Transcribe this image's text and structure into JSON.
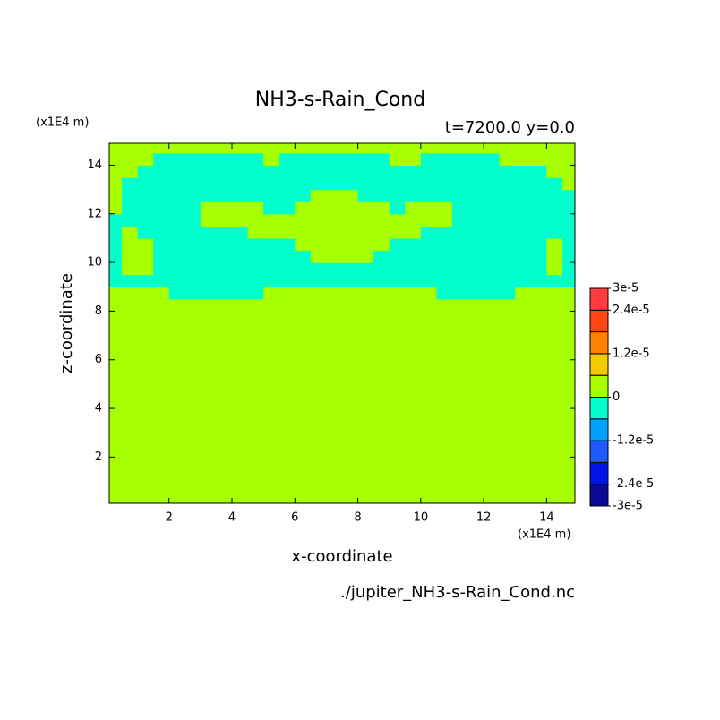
{
  "chart_data": {
    "type": "heatmap",
    "title": "NH3-s-Rain_Cond",
    "subtitle": "t=7200.0 y=0.0",
    "x_unit": "(x1E4 m)",
    "y_unit": "(x1E4 m)",
    "xlabel": "x-coordinate",
    "ylabel": "z-coordinate",
    "caption": "./jupiter_NH3-s-Rain_Cond.nc",
    "xlim": [
      0.1,
      14.9
    ],
    "ylim": [
      0.1,
      14.9
    ],
    "xticks": [
      2,
      4,
      6,
      8,
      10,
      12,
      14
    ],
    "yticks": [
      2,
      4,
      6,
      8,
      10,
      12,
      14
    ],
    "x": [
      0.25,
      0.75,
      1.25,
      1.75,
      2.25,
      2.75,
      3.25,
      3.75,
      4.25,
      4.75,
      5.25,
      5.75,
      6.25,
      6.75,
      7.25,
      7.75,
      8.25,
      8.75,
      9.25,
      9.75,
      10.25,
      10.75,
      11.25,
      11.75,
      12.25,
      12.75,
      13.25,
      13.75,
      14.25,
      14.75
    ],
    "y": [
      0.25,
      0.75,
      1.25,
      1.75,
      2.25,
      2.75,
      3.25,
      3.75,
      4.25,
      4.75,
      5.25,
      5.75,
      6.25,
      6.75,
      7.25,
      7.75,
      8.25,
      8.75,
      9.25,
      9.75,
      10.25,
      10.75,
      11.25,
      11.75,
      12.25,
      12.75,
      13.25,
      13.75,
      14.25,
      14.75
    ],
    "z": [
      [
        1e-06,
        1e-06,
        1e-06,
        1e-06,
        1e-06,
        1e-06,
        1e-06,
        1e-06,
        1e-06,
        1e-06,
        1e-06,
        1e-06,
        1e-06,
        1e-06,
        1e-06,
        1e-06,
        1e-06,
        1e-06,
        1e-06,
        1e-06,
        1e-06,
        1e-06,
        1e-06,
        1e-06,
        1e-06,
        1e-06,
        1e-06,
        1e-06,
        1e-06,
        1e-06
      ],
      [
        1e-06,
        1e-06,
        1e-06,
        1e-06,
        1e-06,
        1e-06,
        1e-06,
        1e-06,
        1e-06,
        1e-06,
        1e-06,
        1e-06,
        1e-06,
        1e-06,
        1e-06,
        1e-06,
        1e-06,
        1e-06,
        1e-06,
        1e-06,
        1e-06,
        1e-06,
        1e-06,
        1e-06,
        1e-06,
        1e-06,
        1e-06,
        1e-06,
        1e-06,
        1e-06
      ],
      [
        1e-06,
        1e-06,
        1e-06,
        1e-06,
        1e-06,
        1e-06,
        1e-06,
        1e-06,
        1e-06,
        1e-06,
        1e-06,
        1e-06,
        1e-06,
        1e-06,
        1e-06,
        1e-06,
        1e-06,
        1e-06,
        1e-06,
        1e-06,
        1e-06,
        1e-06,
        1e-06,
        1e-06,
        1e-06,
        1e-06,
        1e-06,
        1e-06,
        1e-06,
        1e-06
      ],
      [
        1e-06,
        1e-06,
        1e-06,
        1e-06,
        1e-06,
        1e-06,
        1e-06,
        1e-06,
        1e-06,
        1e-06,
        1e-06,
        1e-06,
        1e-06,
        1e-06,
        1e-06,
        1e-06,
        1e-06,
        1e-06,
        1e-06,
        1e-06,
        1e-06,
        1e-06,
        1e-06,
        1e-06,
        1e-06,
        1e-06,
        1e-06,
        1e-06,
        1e-06,
        1e-06
      ],
      [
        1e-06,
        1e-06,
        1e-06,
        1e-06,
        1e-06,
        1e-06,
        1e-06,
        1e-06,
        1e-06,
        1e-06,
        1e-06,
        1e-06,
        1e-06,
        1e-06,
        1e-06,
        1e-06,
        1e-06,
        1e-06,
        1e-06,
        1e-06,
        1e-06,
        1e-06,
        1e-06,
        1e-06,
        1e-06,
        1e-06,
        1e-06,
        1e-06,
        1e-06,
        1e-06
      ],
      [
        1e-06,
        1e-06,
        1e-06,
        1e-06,
        1e-06,
        1e-06,
        1e-06,
        1e-06,
        1e-06,
        1e-06,
        1e-06,
        1e-06,
        1e-06,
        1e-06,
        1e-06,
        1e-06,
        1e-06,
        1e-06,
        1e-06,
        1e-06,
        1e-06,
        1e-06,
        1e-06,
        1e-06,
        1e-06,
        1e-06,
        1e-06,
        1e-06,
        1e-06,
        1e-06
      ],
      [
        1e-06,
        1e-06,
        1e-06,
        1e-06,
        1e-06,
        1e-06,
        1e-06,
        1e-06,
        1e-06,
        1e-06,
        1e-06,
        1e-06,
        1e-06,
        1e-06,
        1e-06,
        1e-06,
        1e-06,
        1e-06,
        1e-06,
        1e-06,
        1e-06,
        1e-06,
        1e-06,
        1e-06,
        1e-06,
        1e-06,
        1e-06,
        1e-06,
        1e-06,
        1e-06
      ],
      [
        1e-06,
        1e-06,
        1e-06,
        1e-06,
        1e-06,
        1e-06,
        1e-06,
        1e-06,
        1e-06,
        1e-06,
        1e-06,
        1e-06,
        1e-06,
        1e-06,
        1e-06,
        1e-06,
        1e-06,
        1e-06,
        1e-06,
        1e-06,
        1e-06,
        1e-06,
        1e-06,
        1e-06,
        1e-06,
        1e-06,
        1e-06,
        1e-06,
        1e-06,
        1e-06
      ],
      [
        1e-06,
        1e-06,
        1e-06,
        1e-06,
        1e-06,
        1e-06,
        1e-06,
        1e-06,
        1e-06,
        1e-06,
        1e-06,
        1e-06,
        1e-06,
        1e-06,
        1e-06,
        1e-06,
        1e-06,
        1e-06,
        1e-06,
        1e-06,
        1e-06,
        1e-06,
        1e-06,
        1e-06,
        1e-06,
        1e-06,
        1e-06,
        1e-06,
        1e-06,
        1e-06
      ],
      [
        1e-06,
        1e-06,
        1e-06,
        1e-06,
        1e-06,
        1e-06,
        1e-06,
        1e-06,
        1e-06,
        1e-06,
        1e-06,
        1e-06,
        1e-06,
        1e-06,
        1e-06,
        1e-06,
        1e-06,
        1e-06,
        1e-06,
        1e-06,
        1e-06,
        1e-06,
        1e-06,
        1e-06,
        1e-06,
        1e-06,
        1e-06,
        1e-06,
        1e-06,
        1e-06
      ],
      [
        1e-06,
        1e-06,
        1e-06,
        1e-06,
        1e-06,
        1e-06,
        1e-06,
        1e-06,
        1e-06,
        1e-06,
        1e-06,
        1e-06,
        1e-06,
        1e-06,
        1e-06,
        1e-06,
        1e-06,
        1e-06,
        1e-06,
        1e-06,
        1e-06,
        1e-06,
        1e-06,
        1e-06,
        1e-06,
        1e-06,
        1e-06,
        1e-06,
        1e-06,
        1e-06
      ],
      [
        1e-06,
        1e-06,
        1e-06,
        1e-06,
        1e-06,
        1e-06,
        1e-06,
        1e-06,
        1e-06,
        1e-06,
        1e-06,
        1e-06,
        1e-06,
        1e-06,
        1e-06,
        1e-06,
        1e-06,
        1e-06,
        1e-06,
        1e-06,
        1e-06,
        1e-06,
        1e-06,
        1e-06,
        1e-06,
        1e-06,
        1e-06,
        1e-06,
        1e-06,
        1e-06
      ],
      [
        1e-06,
        1e-06,
        1e-06,
        1e-06,
        1e-06,
        1e-06,
        1e-06,
        1e-06,
        1e-06,
        1e-06,
        1e-06,
        1e-06,
        1e-06,
        1e-06,
        1e-06,
        1e-06,
        1e-06,
        1e-06,
        1e-06,
        1e-06,
        1e-06,
        1e-06,
        1e-06,
        1e-06,
        1e-06,
        1e-06,
        1e-06,
        1e-06,
        1e-06,
        1e-06
      ],
      [
        1e-06,
        1e-06,
        1e-06,
        1e-06,
        1e-06,
        1e-06,
        1e-06,
        1e-06,
        1e-06,
        1e-06,
        1e-06,
        1e-06,
        1e-06,
        1e-06,
        1e-06,
        1e-06,
        1e-06,
        1e-06,
        1e-06,
        1e-06,
        1e-06,
        1e-06,
        1e-06,
        1e-06,
        1e-06,
        1e-06,
        1e-06,
        1e-06,
        1e-06,
        1e-06
      ],
      [
        1e-06,
        1e-06,
        1e-06,
        1e-06,
        1e-06,
        1e-06,
        1e-06,
        1e-06,
        1e-06,
        1e-06,
        1e-06,
        1e-06,
        1e-06,
        1e-06,
        1e-06,
        1e-06,
        1e-06,
        1e-06,
        1e-06,
        1e-06,
        1e-06,
        1e-06,
        1e-06,
        1e-06,
        1e-06,
        1e-06,
        1e-06,
        1e-06,
        1e-06,
        1e-06
      ],
      [
        1e-06,
        1e-06,
        1e-06,
        1e-06,
        1e-06,
        1e-06,
        1e-06,
        1e-06,
        1e-06,
        1e-06,
        1e-06,
        1e-06,
        1e-06,
        1e-06,
        1e-06,
        1e-06,
        1e-06,
        1e-06,
        1e-06,
        1e-06,
        1e-06,
        1e-06,
        1e-06,
        1e-06,
        1e-06,
        1e-06,
        1e-06,
        1e-06,
        1e-06,
        1e-06
      ],
      [
        1e-06,
        1e-06,
        1e-06,
        1e-06,
        1e-06,
        1e-06,
        1e-06,
        1e-06,
        1e-06,
        1e-06,
        1e-06,
        1e-06,
        1e-06,
        1e-06,
        1e-06,
        1e-06,
        1e-06,
        1e-06,
        1e-06,
        1e-06,
        1e-06,
        1e-06,
        1e-06,
        1e-06,
        1e-06,
        1e-06,
        1e-06,
        1e-06,
        1e-06,
        1e-06
      ],
      [
        1e-06,
        1e-06,
        1e-06,
        1e-06,
        -3e-06,
        -3e-06,
        -3e-06,
        -3e-06,
        -3e-06,
        -3e-06,
        1e-06,
        1e-06,
        1e-06,
        1e-06,
        1e-06,
        1e-06,
        1e-06,
        1e-06,
        1e-06,
        1e-06,
        1e-06,
        -3e-06,
        -3e-06,
        -3e-06,
        -3e-06,
        -3e-06,
        1e-06,
        1e-06,
        1e-06,
        1e-06
      ],
      [
        -3e-06,
        -3e-06,
        -3e-06,
        -3e-06,
        -3e-06,
        -3e-06,
        -3e-06,
        -3e-06,
        -3e-06,
        -3e-06,
        -3e-06,
        -3e-06,
        -3e-06,
        -3e-06,
        -3e-06,
        -3e-06,
        -3e-06,
        -3e-06,
        -3e-06,
        -3e-06,
        -3e-06,
        -3e-06,
        -3e-06,
        -3e-06,
        -3e-06,
        -3e-06,
        -3e-06,
        -3e-06,
        -3e-06,
        -3e-06
      ],
      [
        -3e-06,
        1e-06,
        1e-06,
        -3e-06,
        -3e-06,
        -3e-06,
        -3e-06,
        -3e-06,
        -3e-06,
        -3e-06,
        -3e-06,
        -3e-06,
        -3e-06,
        -3e-06,
        -3e-06,
        -3e-06,
        -3e-06,
        -3e-06,
        -3e-06,
        -3e-06,
        -3e-06,
        -3e-06,
        -3e-06,
        -3e-06,
        -3e-06,
        -3e-06,
        -3e-06,
        -3e-06,
        1e-06,
        -3e-06
      ],
      [
        -3e-06,
        1e-06,
        1e-06,
        -3e-06,
        -3e-06,
        -3e-06,
        -3e-06,
        -3e-06,
        -3e-06,
        -3e-06,
        -3e-06,
        -3e-06,
        -3e-06,
        1e-06,
        1e-06,
        1e-06,
        1e-06,
        -3e-06,
        -3e-06,
        -3e-06,
        -3e-06,
        -3e-06,
        -3e-06,
        -3e-06,
        -3e-06,
        -3e-06,
        -3e-06,
        -3e-06,
        1e-06,
        -3e-06
      ],
      [
        -3e-06,
        1e-06,
        1e-06,
        -3e-06,
        -3e-06,
        -3e-06,
        -3e-06,
        -3e-06,
        -3e-06,
        -3e-06,
        -3e-06,
        -3e-06,
        1e-06,
        1e-06,
        1e-06,
        1e-06,
        1e-06,
        1e-06,
        -3e-06,
        -3e-06,
        -3e-06,
        -3e-06,
        -3e-06,
        -3e-06,
        -3e-06,
        -3e-06,
        -3e-06,
        -3e-06,
        1e-06,
        -3e-06
      ],
      [
        -3e-06,
        1e-06,
        -3e-06,
        -3e-06,
        -3e-06,
        -3e-06,
        -3e-06,
        -3e-06,
        -3e-06,
        1e-06,
        1e-06,
        1e-06,
        1e-06,
        1e-06,
        1e-06,
        1e-06,
        1e-06,
        1e-06,
        1e-06,
        1e-06,
        -3e-06,
        -3e-06,
        -3e-06,
        -3e-06,
        -3e-06,
        -3e-06,
        -3e-06,
        -3e-06,
        -3e-06,
        -3e-06
      ],
      [
        -3e-06,
        -3e-06,
        -3e-06,
        -3e-06,
        -3e-06,
        -3e-06,
        1e-06,
        1e-06,
        1e-06,
        1e-06,
        1e-06,
        1e-06,
        1e-06,
        1e-06,
        1e-06,
        1e-06,
        1e-06,
        1e-06,
        1e-06,
        1e-06,
        1e-06,
        1e-06,
        -3e-06,
        -3e-06,
        -3e-06,
        -3e-06,
        -3e-06,
        -3e-06,
        -3e-06,
        -3e-06
      ],
      [
        1e-06,
        -3e-06,
        -3e-06,
        -3e-06,
        -3e-06,
        -3e-06,
        1e-06,
        1e-06,
        1e-06,
        1e-06,
        -3e-06,
        -3e-06,
        1e-06,
        1e-06,
        1e-06,
        1e-06,
        1e-06,
        1e-06,
        -3e-06,
        1e-06,
        1e-06,
        1e-06,
        -3e-06,
        -3e-06,
        -3e-06,
        -3e-06,
        -3e-06,
        -3e-06,
        -3e-06,
        -3e-06
      ],
      [
        1e-06,
        -3e-06,
        -3e-06,
        -3e-06,
        -3e-06,
        -3e-06,
        -3e-06,
        -3e-06,
        -3e-06,
        -3e-06,
        -3e-06,
        -3e-06,
        -3e-06,
        1e-06,
        1e-06,
        1e-06,
        -3e-06,
        -3e-06,
        -3e-06,
        -3e-06,
        -3e-06,
        -3e-06,
        -3e-06,
        -3e-06,
        -3e-06,
        -3e-06,
        -3e-06,
        -3e-06,
        -3e-06,
        -3e-06
      ],
      [
        1e-06,
        -3e-06,
        -3e-06,
        -3e-06,
        -3e-06,
        -3e-06,
        -3e-06,
        -3e-06,
        -3e-06,
        -3e-06,
        -3e-06,
        -3e-06,
        -3e-06,
        -3e-06,
        -3e-06,
        -3e-06,
        -3e-06,
        -3e-06,
        -3e-06,
        -3e-06,
        -3e-06,
        -3e-06,
        -3e-06,
        -3e-06,
        -3e-06,
        -3e-06,
        -3e-06,
        -3e-06,
        -3e-06,
        1e-06
      ],
      [
        1e-06,
        1e-06,
        -3e-06,
        -3e-06,
        -3e-06,
        -3e-06,
        -3e-06,
        -3e-06,
        -3e-06,
        -3e-06,
        -3e-06,
        -3e-06,
        -3e-06,
        -3e-06,
        -3e-06,
        -3e-06,
        -3e-06,
        -3e-06,
        -3e-06,
        -3e-06,
        -3e-06,
        -3e-06,
        -3e-06,
        -3e-06,
        -3e-06,
        -3e-06,
        -3e-06,
        -3e-06,
        1e-06,
        1e-06
      ],
      [
        1e-06,
        1e-06,
        1e-06,
        -3e-06,
        -3e-06,
        -3e-06,
        -3e-06,
        -3e-06,
        -3e-06,
        -3e-06,
        1e-06,
        -3e-06,
        -3e-06,
        -3e-06,
        -3e-06,
        -3e-06,
        -3e-06,
        -3e-06,
        1e-06,
        1e-06,
        -3e-06,
        -3e-06,
        -3e-06,
        -3e-06,
        -3e-06,
        1e-06,
        1e-06,
        1e-06,
        1e-06,
        1e-06
      ],
      [
        1e-06,
        1e-06,
        1e-06,
        1e-06,
        1e-06,
        1e-06,
        1e-06,
        1e-06,
        1e-06,
        1e-06,
        1e-06,
        1e-06,
        1e-06,
        1e-06,
        1e-06,
        1e-06,
        1e-06,
        1e-06,
        1e-06,
        1e-06,
        1e-06,
        1e-06,
        1e-06,
        1e-06,
        1e-06,
        1e-06,
        1e-06,
        1e-06,
        1e-06,
        1e-06
      ]
    ],
    "colorbar": {
      "range": [
        -3e-05,
        3e-05
      ],
      "colors": [
        "#0a0a96",
        "#0014e6",
        "#1e5aff",
        "#00a0ff",
        "#00ffcc",
        "#a8ff00",
        "#f5c800",
        "#ff8200",
        "#ff4614",
        "#ff3c3c"
      ],
      "ticks": [
        {
          "value": 3e-05,
          "label": "3e-5"
        },
        {
          "value": 2.4e-05,
          "label": "2.4e-5"
        },
        {
          "value": 1.2e-05,
          "label": "1.2e-5"
        },
        0,
        {
          "value": -1.2e-05,
          "label": "-1.2e-5"
        },
        {
          "value": -2.4e-05,
          "label": "-2.4e-5"
        },
        {
          "value": -3e-05,
          "label": "-3e-5"
        }
      ]
    }
  }
}
